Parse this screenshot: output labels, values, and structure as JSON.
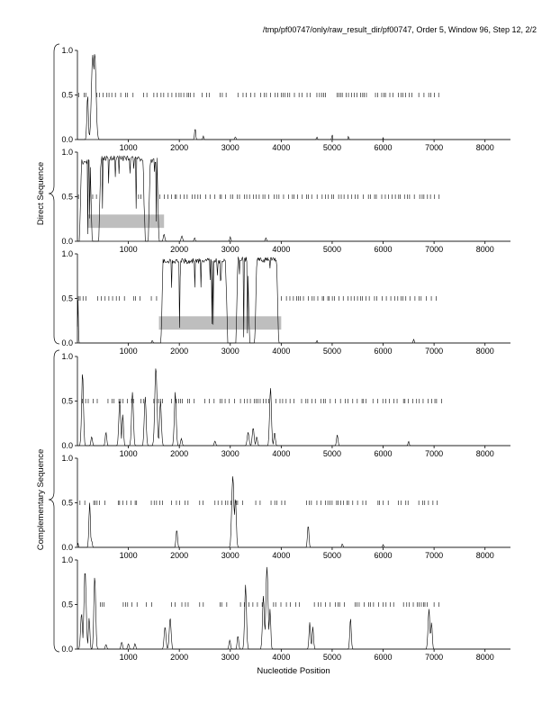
{
  "header": "/tmp/pf00747/only/raw_result_dir/pf00747, Order 5, Window 96, Step 12, 2/2",
  "xlabel": "Nucleotide Position",
  "group_labels": {
    "direct": "Direct Sequence",
    "complementary": "Complementary Sequence"
  },
  "colors": {
    "line": "#000000",
    "band": "#bebebe",
    "axis": "#000000"
  },
  "chart_data": {
    "type": "line",
    "title": "",
    "xlabel": "Nucleotide Position",
    "xlim": [
      0,
      8500
    ],
    "ylim": [
      0,
      1
    ],
    "x_ticks": [
      1000,
      2000,
      3000,
      4000,
      5000,
      6000,
      7000,
      8000
    ],
    "y_ticks": [
      0.0,
      0.5,
      1.0
    ],
    "grid": false,
    "panels": [
      {
        "group": "Direct Sequence",
        "frame": 1,
        "peaks": [
          [
            200,
            0.5,
            20
          ],
          [
            300,
            0.95,
            35
          ],
          [
            340,
            0.97,
            35
          ],
          [
            2310,
            0.13,
            15
          ],
          [
            2470,
            0.04,
            12
          ],
          [
            3100,
            0.03,
            15
          ],
          [
            4700,
            0.03,
            12
          ],
          [
            5000,
            0.06,
            10
          ],
          [
            5320,
            0.04,
            10
          ],
          [
            6000,
            0.02,
            10
          ]
        ],
        "plateaus": [],
        "codon_ticks": [
          [
            30,
            200
          ],
          [
            380,
            1100
          ],
          [
            1300,
            1400
          ],
          [
            1500,
            2300
          ],
          [
            2450,
            2600
          ],
          [
            2800,
            3000
          ],
          [
            3150,
            3500
          ],
          [
            3600,
            4300
          ],
          [
            4350,
            4600
          ],
          [
            4700,
            4950
          ],
          [
            5100,
            5700
          ],
          [
            5850,
            6200
          ],
          [
            6300,
            6600
          ],
          [
            6700,
            7100
          ]
        ],
        "band": null
      },
      {
        "group": "Direct Sequence",
        "frame": 2,
        "peaks": [
          [
            1700,
            0.08,
            20
          ],
          [
            2050,
            0.06,
            20
          ],
          [
            2300,
            0.04,
            15
          ],
          [
            3000,
            0.05,
            15
          ],
          [
            3700,
            0.04,
            15
          ]
        ],
        "plateaus": [
          [
            40,
            290,
            0.92
          ],
          [
            420,
            1330,
            0.96
          ],
          [
            1390,
            1600,
            0.94
          ]
        ],
        "codon_ticks": [
          [
            20,
            60
          ],
          [
            300,
            420
          ],
          [
            1200,
            1250
          ],
          [
            1620,
            7150
          ]
        ],
        "band": [
          200,
          1700
        ]
      },
      {
        "group": "Direct Sequence",
        "frame": 3,
        "peaks": [
          [
            10,
            0.5,
            10
          ],
          [
            1470,
            0.03,
            15
          ],
          [
            2470,
            0.04,
            15
          ],
          [
            2700,
            0.04,
            15
          ],
          [
            4700,
            0.03,
            12
          ],
          [
            6600,
            0.04,
            15
          ]
        ],
        "plateaus": [
          [
            1640,
            2950,
            0.95
          ],
          [
            3110,
            3380,
            0.97
          ],
          [
            3480,
            3950,
            0.96
          ]
        ],
        "codon_ticks": [
          [
            20,
            250
          ],
          [
            400,
            1000
          ],
          [
            1100,
            1300
          ],
          [
            1450,
            1600
          ],
          [
            4000,
            7100
          ]
        ],
        "band": [
          1600,
          4000
        ]
      },
      {
        "group": "Complementary Sequence",
        "frame": 1,
        "peaks": [
          [
            100,
            0.82,
            25
          ],
          [
            280,
            0.1,
            20
          ],
          [
            560,
            0.15,
            20
          ],
          [
            830,
            0.5,
            25
          ],
          [
            890,
            0.35,
            20
          ],
          [
            1080,
            0.6,
            25
          ],
          [
            1330,
            0.55,
            25
          ],
          [
            1540,
            0.88,
            30
          ],
          [
            1630,
            0.5,
            25
          ],
          [
            1920,
            0.6,
            25
          ],
          [
            2040,
            0.08,
            20
          ],
          [
            2700,
            0.05,
            20
          ],
          [
            3350,
            0.15,
            25
          ],
          [
            3450,
            0.2,
            25
          ],
          [
            3520,
            0.1,
            20
          ],
          [
            3790,
            0.65,
            25
          ],
          [
            3870,
            0.15,
            20
          ],
          [
            5100,
            0.12,
            20
          ],
          [
            6500,
            0.05,
            15
          ]
        ],
        "plateaus": [],
        "codon_ticks": [
          [
            100,
            400
          ],
          [
            600,
            1100
          ],
          [
            1250,
            1300
          ],
          [
            1500,
            1700
          ],
          [
            1850,
            2300
          ],
          [
            2500,
            2700
          ],
          [
            2800,
            3100
          ],
          [
            3200,
            3800
          ],
          [
            3900,
            4300
          ],
          [
            4400,
            5700
          ],
          [
            5800,
            6300
          ],
          [
            6400,
            7150
          ]
        ],
        "band": null
      },
      {
        "group": "Complementary Sequence",
        "frame": 2,
        "peaks": [
          [
            10,
            0.05,
            10
          ],
          [
            240,
            0.5,
            20
          ],
          [
            280,
            0.08,
            15
          ],
          [
            1950,
            0.2,
            20
          ],
          [
            3050,
            0.8,
            30
          ],
          [
            3100,
            0.55,
            25
          ],
          [
            4530,
            0.25,
            20
          ],
          [
            5200,
            0.04,
            15
          ],
          [
            6000,
            0.03,
            15
          ]
        ],
        "plateaus": [],
        "codon_ticks": [
          [
            50,
            200
          ],
          [
            320,
            600
          ],
          [
            800,
            1200
          ],
          [
            1450,
            1700
          ],
          [
            1850,
            2200
          ],
          [
            2400,
            2550
          ],
          [
            2700,
            3300
          ],
          [
            3500,
            3600
          ],
          [
            3800,
            4100
          ],
          [
            4500,
            4600
          ],
          [
            4700,
            5700
          ],
          [
            5900,
            6100
          ],
          [
            6300,
            6500
          ],
          [
            6700,
            7100
          ]
        ],
        "band": null
      },
      {
        "group": "Complementary Sequence",
        "frame": 3,
        "peaks": [
          [
            80,
            0.4,
            25
          ],
          [
            150,
            0.88,
            30
          ],
          [
            230,
            0.35,
            20
          ],
          [
            340,
            0.82,
            25
          ],
          [
            560,
            0.05,
            20
          ],
          [
            870,
            0.08,
            20
          ],
          [
            1000,
            0.06,
            20
          ],
          [
            1130,
            0.06,
            20
          ],
          [
            1720,
            0.25,
            25
          ],
          [
            1820,
            0.35,
            25
          ],
          [
            2990,
            0.1,
            20
          ],
          [
            3150,
            0.15,
            20
          ],
          [
            3300,
            0.72,
            25
          ],
          [
            3650,
            0.6,
            25
          ],
          [
            3720,
            0.92,
            30
          ],
          [
            3780,
            0.45,
            20
          ],
          [
            4560,
            0.3,
            20
          ],
          [
            4620,
            0.25,
            20
          ],
          [
            5360,
            0.35,
            20
          ],
          [
            6900,
            0.45,
            25
          ],
          [
            6950,
            0.3,
            20
          ]
        ],
        "plateaus": [],
        "codon_ticks": [
          [
            450,
            600
          ],
          [
            900,
            1200
          ],
          [
            1350,
            1500
          ],
          [
            1850,
            1950
          ],
          [
            2050,
            2250
          ],
          [
            2400,
            2500
          ],
          [
            2800,
            3000
          ],
          [
            3200,
            3650
          ],
          [
            3850,
            4400
          ],
          [
            4650,
            5300
          ],
          [
            5450,
            6250
          ],
          [
            6400,
            6900
          ],
          [
            7000,
            7150
          ]
        ],
        "band": null
      }
    ]
  }
}
